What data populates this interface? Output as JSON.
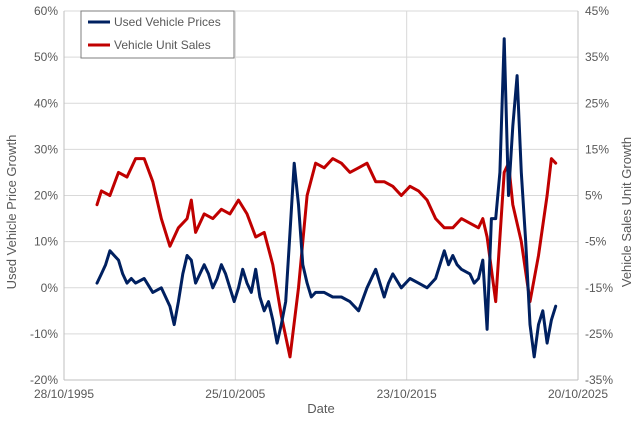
{
  "chart_data": {
    "type": "line",
    "title": "",
    "xlabel": "Date",
    "ylabel": "Used Vehicle Price Growth",
    "y2label": "Vehicle Sales Unit Growth",
    "x_ticks": [
      "28/10/1995",
      "25/10/2005",
      "23/10/2015",
      "20/10/2025"
    ],
    "xlim": [
      "1995-10-28",
      "2025-10-20"
    ],
    "ylim": [
      -20,
      60
    ],
    "y_ticks": [
      "-20%",
      "-10%",
      "0%",
      "10%",
      "20%",
      "30%",
      "40%",
      "50%",
      "60%"
    ],
    "y2lim": [
      -35,
      45
    ],
    "y2_ticks": [
      "-35%",
      "-25%",
      "-15%",
      "-5%",
      "5%",
      "15%",
      "25%",
      "35%",
      "45%"
    ],
    "grid": true,
    "legend_position": "top-left",
    "colors": {
      "prices": "#002060",
      "sales": "#C00000",
      "grid": "#d9d9d9",
      "axis": "#bfbfbf"
    },
    "series": [
      {
        "name": "Used Vehicle Prices",
        "axis": "left",
        "points": [
          [
            "1997-10-01",
            1
          ],
          [
            "1998-01-01",
            3
          ],
          [
            "1998-04-01",
            5
          ],
          [
            "1998-07-01",
            8
          ],
          [
            "1998-10-01",
            7
          ],
          [
            "1999-01-01",
            6
          ],
          [
            "1999-04-01",
            3
          ],
          [
            "1999-07-01",
            1
          ],
          [
            "1999-10-01",
            2
          ],
          [
            "2000-01-01",
            1
          ],
          [
            "2000-07-01",
            2
          ],
          [
            "2001-01-01",
            -1
          ],
          [
            "2001-07-01",
            0
          ],
          [
            "2002-01-01",
            -4
          ],
          [
            "2002-04-01",
            -8
          ],
          [
            "2002-07-01",
            -3
          ],
          [
            "2002-10-01",
            3
          ],
          [
            "2003-01-01",
            7
          ],
          [
            "2003-04-01",
            6
          ],
          [
            "2003-07-01",
            1
          ],
          [
            "2003-10-01",
            3
          ],
          [
            "2004-01-01",
            5
          ],
          [
            "2004-04-01",
            3
          ],
          [
            "2004-07-01",
            0
          ],
          [
            "2004-10-01",
            2
          ],
          [
            "2005-01-01",
            5
          ],
          [
            "2005-04-01",
            3
          ],
          [
            "2005-07-01",
            0
          ],
          [
            "2005-10-01",
            -3
          ],
          [
            "2006-01-01",
            0
          ],
          [
            "2006-04-01",
            4
          ],
          [
            "2006-07-01",
            1
          ],
          [
            "2006-10-01",
            -1
          ],
          [
            "2007-01-01",
            4
          ],
          [
            "2007-04-01",
            -2
          ],
          [
            "2007-07-01",
            -5
          ],
          [
            "2007-10-01",
            -3
          ],
          [
            "2008-01-01",
            -7
          ],
          [
            "2008-04-01",
            -12
          ],
          [
            "2008-07-01",
            -8
          ],
          [
            "2008-10-01",
            -3
          ],
          [
            "2009-01-01",
            12
          ],
          [
            "2009-04-01",
            27
          ],
          [
            "2009-07-01",
            18
          ],
          [
            "2009-10-01",
            5
          ],
          [
            "2010-01-01",
            1
          ],
          [
            "2010-04-01",
            -2
          ],
          [
            "2010-07-01",
            -1
          ],
          [
            "2011-01-01",
            -1
          ],
          [
            "2011-07-01",
            -2
          ],
          [
            "2012-01-01",
            -2
          ],
          [
            "2012-07-01",
            -3
          ],
          [
            "2013-01-01",
            -5
          ],
          [
            "2013-07-01",
            0
          ],
          [
            "2014-01-01",
            4
          ],
          [
            "2014-04-01",
            1
          ],
          [
            "2014-07-01",
            -2
          ],
          [
            "2014-10-01",
            1
          ],
          [
            "2015-01-01",
            3
          ],
          [
            "2015-07-01",
            0
          ],
          [
            "2016-01-01",
            2
          ],
          [
            "2016-07-01",
            1
          ],
          [
            "2017-01-01",
            0
          ],
          [
            "2017-07-01",
            2
          ],
          [
            "2018-01-01",
            8
          ],
          [
            "2018-04-01",
            5
          ],
          [
            "2018-07-01",
            7
          ],
          [
            "2018-10-01",
            5
          ],
          [
            "2019-01-01",
            4
          ],
          [
            "2019-07-01",
            3
          ],
          [
            "2019-10-01",
            1
          ],
          [
            "2020-01-01",
            2
          ],
          [
            "2020-04-01",
            6
          ],
          [
            "2020-07-01",
            -9
          ],
          [
            "2020-10-01",
            15
          ],
          [
            "2021-01-01",
            15
          ],
          [
            "2021-04-01",
            25
          ],
          [
            "2021-07-01",
            54
          ],
          [
            "2021-10-01",
            20
          ],
          [
            "2022-01-01",
            35
          ],
          [
            "2022-04-01",
            46
          ],
          [
            "2022-07-01",
            25
          ],
          [
            "2022-10-01",
            10
          ],
          [
            "2023-01-01",
            -8
          ],
          [
            "2023-04-01",
            -15
          ],
          [
            "2023-07-01",
            -8
          ],
          [
            "2023-10-01",
            -5
          ],
          [
            "2024-01-01",
            -12
          ],
          [
            "2024-04-01",
            -7
          ],
          [
            "2024-07-01",
            -4
          ]
        ]
      },
      {
        "name": "Vehicle Unit Sales",
        "axis": "right",
        "points": [
          [
            "1997-10-01",
            3
          ],
          [
            "1998-01-01",
            6
          ],
          [
            "1998-07-01",
            5
          ],
          [
            "1999-01-01",
            10
          ],
          [
            "1999-07-01",
            9
          ],
          [
            "2000-01-01",
            13
          ],
          [
            "2000-07-01",
            13
          ],
          [
            "2001-01-01",
            8
          ],
          [
            "2001-07-01",
            0
          ],
          [
            "2002-01-01",
            -6
          ],
          [
            "2002-07-01",
            -2
          ],
          [
            "2003-01-01",
            0
          ],
          [
            "2003-04-01",
            4
          ],
          [
            "2003-07-01",
            -3
          ],
          [
            "2004-01-01",
            1
          ],
          [
            "2004-07-01",
            0
          ],
          [
            "2005-01-01",
            2
          ],
          [
            "2005-07-01",
            1
          ],
          [
            "2006-01-01",
            4
          ],
          [
            "2006-07-01",
            1
          ],
          [
            "2007-01-01",
            -4
          ],
          [
            "2007-07-01",
            -3
          ],
          [
            "2008-01-01",
            -10
          ],
          [
            "2008-07-01",
            -21
          ],
          [
            "2009-01-01",
            -30
          ],
          [
            "2009-07-01",
            -15
          ],
          [
            "2010-01-01",
            5
          ],
          [
            "2010-07-01",
            12
          ],
          [
            "2011-01-01",
            11
          ],
          [
            "2011-07-01",
            13
          ],
          [
            "2012-01-01",
            12
          ],
          [
            "2012-07-01",
            10
          ],
          [
            "2013-01-01",
            11
          ],
          [
            "2013-07-01",
            12
          ],
          [
            "2014-01-01",
            8
          ],
          [
            "2014-07-01",
            8
          ],
          [
            "2015-01-01",
            7
          ],
          [
            "2015-07-01",
            5
          ],
          [
            "2016-01-01",
            7
          ],
          [
            "2016-07-01",
            6
          ],
          [
            "2017-01-01",
            4
          ],
          [
            "2017-07-01",
            0
          ],
          [
            "2018-01-01",
            -2
          ],
          [
            "2018-07-01",
            -2
          ],
          [
            "2019-01-01",
            0
          ],
          [
            "2019-07-01",
            -1
          ],
          [
            "2020-01-01",
            -2
          ],
          [
            "2020-04-01",
            0
          ],
          [
            "2020-07-01",
            -4
          ],
          [
            "2021-01-01",
            -18
          ],
          [
            "2021-07-01",
            10
          ],
          [
            "2021-10-01",
            12
          ],
          [
            "2022-01-01",
            3
          ],
          [
            "2022-07-01",
            -5
          ],
          [
            "2023-01-01",
            -18
          ],
          [
            "2023-07-01",
            -8
          ],
          [
            "2024-01-01",
            5
          ],
          [
            "2024-04-01",
            13
          ],
          [
            "2024-07-01",
            12
          ]
        ]
      }
    ]
  }
}
